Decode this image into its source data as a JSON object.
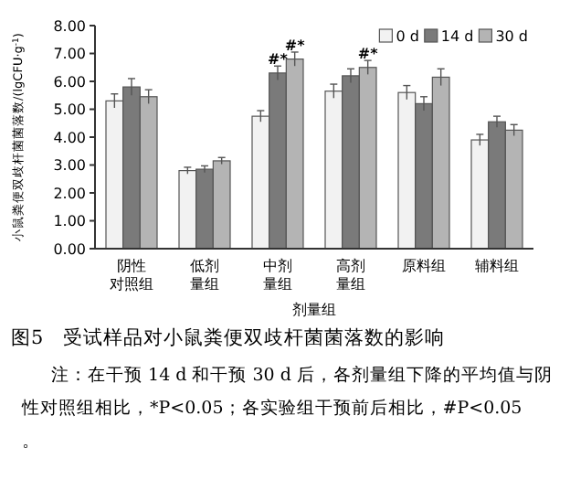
{
  "chart_data": {
    "type": "bar",
    "title": "图5　受试样品对小鼠粪便双歧杆菌菌落数的影响",
    "xlabel": "剂量组",
    "ylabel": "小鼠粪便双歧杆菌菌落数/(lgCFU·g$^{-1}$)",
    "categories": [
      "阴性对照组",
      "低剂量组",
      "中剂量组",
      "高剂量组",
      "原料组",
      "辅料组"
    ],
    "series": [
      {
        "name": "0 d",
        "color": "#f2f2f2",
        "values": [
          5.3,
          2.8,
          4.75,
          5.65,
          5.6,
          3.9
        ],
        "errors": [
          0.25,
          0.12,
          0.2,
          0.25,
          0.25,
          0.2
        ]
      },
      {
        "name": "14 d",
        "color": "#7a7a7a",
        "values": [
          5.8,
          2.85,
          6.3,
          6.2,
          5.2,
          4.55
        ],
        "errors": [
          0.3,
          0.12,
          0.25,
          0.25,
          0.25,
          0.2
        ]
      },
      {
        "name": "30 d",
        "color": "#b4b4b4",
        "values": [
          5.45,
          3.15,
          6.8,
          6.5,
          6.15,
          4.25
        ],
        "errors": [
          0.25,
          0.12,
          0.25,
          0.25,
          0.3,
          0.2
        ]
      }
    ],
    "ylim": [
      0,
      8
    ],
    "yticks": [
      {
        "value": 0,
        "label": "0.00"
      },
      {
        "value": 1,
        "label": "1.00"
      },
      {
        "value": 2,
        "label": "2.00"
      },
      {
        "value": 3,
        "label": "3.00"
      },
      {
        "value": 4,
        "label": "4.00"
      },
      {
        "value": 5,
        "label": "5.00"
      },
      {
        "value": 6,
        "label": "6.00"
      },
      {
        "value": 7,
        "label": "7.00"
      },
      {
        "value": 8,
        "label": "8.00"
      }
    ],
    "grid": false,
    "legend": "top right",
    "annotations": [
      {
        "text": "#*",
        "x": "中剂量组",
        "y": 6.3
      },
      {
        "text": "#*",
        "x": "中剂量组",
        "y": 6.8
      },
      {
        "text": "#*",
        "x": "高剂量组",
        "y": 6.5
      },
      "注：在干预 14 d 和干预 30 d 后，各剂量组下降的平均值与阴性对照组相比，*P<0.05；各实验组干预前后相比，#P<0.05。"
    ]
  }
}
